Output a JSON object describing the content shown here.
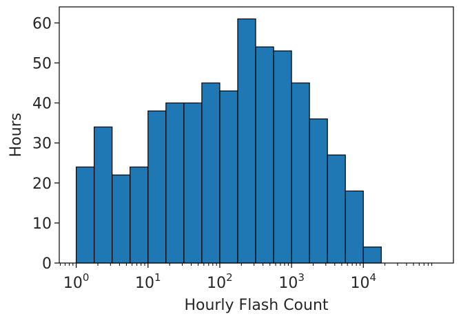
{
  "chart_data": {
    "type": "bar",
    "subtype": "histogram",
    "xscale": "log",
    "xlabel": "Hourly Flash Count",
    "ylabel": "Hours",
    "bin_edges": [
      1,
      1.778,
      3.162,
      5.623,
      10,
      17.78,
      31.62,
      56.23,
      100,
      177.8,
      316.2,
      562.3,
      1000,
      1778,
      3162,
      5623,
      10000,
      17783
    ],
    "values": [
      24,
      34,
      22,
      24,
      38,
      40,
      40,
      45,
      43,
      61,
      54,
      53,
      45,
      36,
      27,
      18,
      4
    ],
    "xlim": [
      0.58,
      180000
    ],
    "ylim": [
      0,
      64
    ],
    "xticks": [
      1,
      10,
      100,
      1000,
      10000
    ],
    "xtick_labels": [
      {
        "base": "10",
        "exp": "0"
      },
      {
        "base": "10",
        "exp": "1"
      },
      {
        "base": "10",
        "exp": "2"
      },
      {
        "base": "10",
        "exp": "3"
      },
      {
        "base": "10",
        "exp": "4"
      }
    ],
    "yticks": [
      0,
      10,
      20,
      30,
      40,
      50,
      60
    ],
    "ytick_labels": [
      "0",
      "10",
      "20",
      "30",
      "40",
      "50",
      "60"
    ],
    "grid": false,
    "colors": {
      "bar": "#1f77b4",
      "edge": "#000000"
    }
  }
}
